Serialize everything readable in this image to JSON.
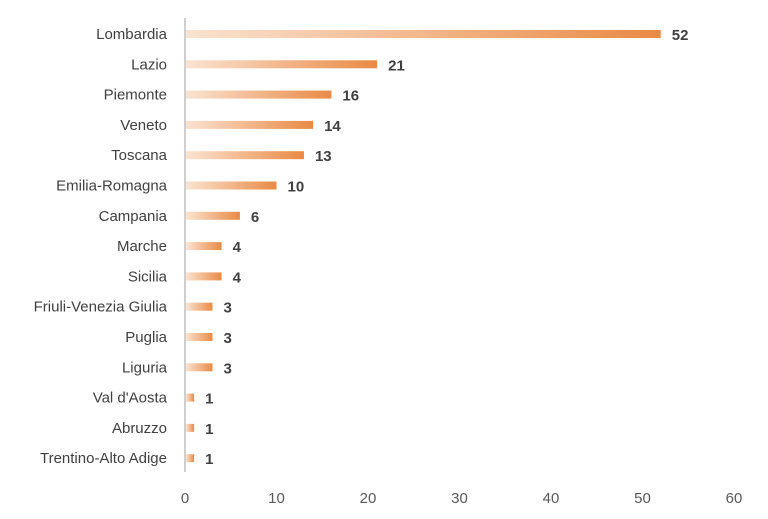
{
  "chart_data": {
    "type": "bar",
    "orientation": "horizontal",
    "categories": [
      "Lombardia",
      "Lazio",
      "Piemonte",
      "Veneto",
      "Toscana",
      "Emilia-Romagna",
      "Campania",
      "Marche",
      "Sicilia",
      "Friuli-Venezia Giulia",
      "Puglia",
      "Liguria",
      "Val d'Aosta",
      "Abruzzo",
      "Trentino-Alto Adige"
    ],
    "values": [
      52,
      21,
      16,
      14,
      13,
      10,
      6,
      4,
      4,
      3,
      3,
      3,
      1,
      1,
      1
    ],
    "xlim": [
      0,
      60
    ],
    "xticks": [
      "0",
      "10",
      "20",
      "30",
      "40",
      "50",
      "60"
    ],
    "title": "",
    "xlabel": "",
    "ylabel": "",
    "grid": false,
    "legend": "none",
    "bar_style": "gradient",
    "colors": {
      "bar_start": "#fbe3d1",
      "bar_end": "#e98a45",
      "axis": "#bfbfbf"
    }
  }
}
